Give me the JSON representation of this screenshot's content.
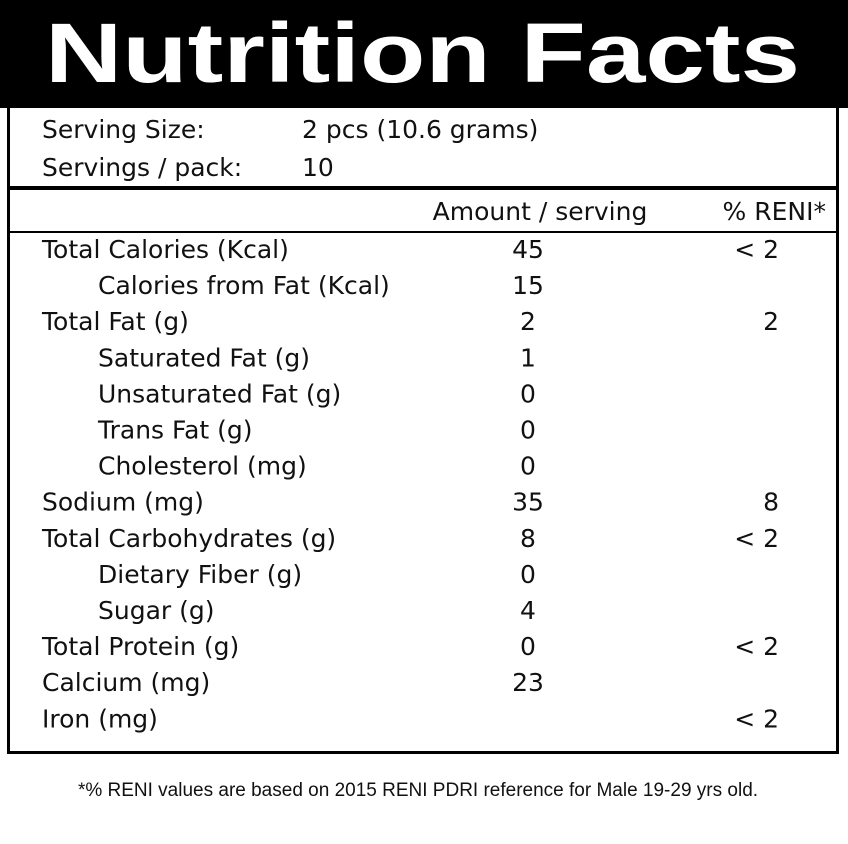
{
  "title": "Nutrition Facts",
  "serving": [
    {
      "label": "Serving Size:",
      "value": "2 pcs (10.6 grams)"
    },
    {
      "label": "Servings / pack:",
      "value": 10
    }
  ],
  "table": {
    "header": [
      "Amount / serving",
      "% RENI*"
    ],
    "rows": [
      {
        "label": "Total Calories (Kcal)",
        "amount": 45,
        "reni": "< 2",
        "children": [
          {
            "label": "Calories from Fat (Kcal)",
            "amount": 15
          }
        ]
      },
      {
        "label": "Total Fat (g)",
        "amount": 2,
        "reni": 2,
        "children": [
          {
            "label": "Saturated Fat (g)",
            "amount": 1
          },
          {
            "label": "Unsaturated Fat (g)",
            "amount": 0
          },
          {
            "label": "Trans Fat (g)",
            "amount": 0
          },
          {
            "label": "Cholesterol (mg)",
            "amount": 0
          }
        ]
      },
      {
        "label": "Sodium (mg)",
        "amount": 35,
        "reni": 8
      },
      {
        "label": "Total Carbohydrates (g)",
        "amount": 8,
        "reni": "< 2",
        "children": [
          {
            "label": "Dietary Fiber (g)",
            "amount": 0
          },
          {
            "label": "Sugar (g)",
            "amount": 4
          }
        ]
      },
      {
        "label": "Total Protein (g)",
        "amount": 0,
        "reni": "< 2"
      },
      {
        "label": "Calcium (mg)",
        "amount": 23
      },
      {
        "label": "Iron (mg)",
        "reni": "< 2"
      }
    ]
  },
  "footnote": "*% RENI values are based on 2015 RENI PDRI reference for Male 19-29 yrs old."
}
